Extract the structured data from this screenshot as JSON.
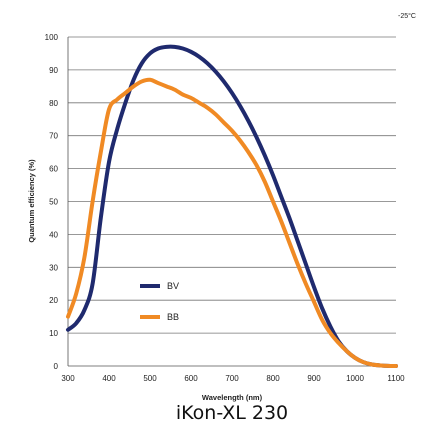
{
  "chart_data": {
    "type": "line",
    "title": "",
    "xlabel": "Wavelength (nm)",
    "ylabel": "Quantum efficiency (%)",
    "xlim": [
      300,
      1100
    ],
    "ylim": [
      0,
      100
    ],
    "xticks": [
      300,
      400,
      500,
      600,
      700,
      800,
      900,
      1000,
      1100
    ],
    "yticks": [
      0,
      10,
      20,
      30,
      40,
      50,
      60,
      70,
      80,
      90,
      100
    ],
    "grid": "horizontal",
    "legend_position": "lower-left",
    "annotation": "-25°C",
    "caption": "iKon-XL 230",
    "series": [
      {
        "name": "BV",
        "color": "#1f2a6e",
        "x": [
          300,
          320,
          340,
          360,
          380,
          400,
          420,
          440,
          460,
          480,
          500,
          520,
          540,
          560,
          580,
          600,
          620,
          640,
          660,
          680,
          700,
          720,
          740,
          760,
          780,
          800,
          820,
          840,
          860,
          880,
          900,
          920,
          940,
          960,
          980,
          1000,
          1020,
          1040,
          1060,
          1080,
          1100
        ],
        "y": [
          11,
          13,
          17,
          25,
          45,
          62,
          72,
          80,
          87,
          92,
          95,
          96.5,
          97,
          97,
          96.5,
          95.5,
          94,
          92,
          89.5,
          86.5,
          83,
          79,
          74.5,
          69.5,
          64,
          58,
          51.5,
          45,
          38,
          31,
          24,
          17.5,
          12,
          7.5,
          4.5,
          2.5,
          1.2,
          0.5,
          0.2,
          0.05,
          0
        ]
      },
      {
        "name": "BB",
        "color": "#f08a24",
        "x": [
          300,
          320,
          340,
          360,
          380,
          400,
          420,
          440,
          460,
          480,
          500,
          520,
          540,
          560,
          580,
          600,
          620,
          640,
          660,
          680,
          700,
          720,
          740,
          760,
          780,
          800,
          820,
          840,
          860,
          880,
          900,
          920,
          940,
          960,
          980,
          1000,
          1020,
          1040,
          1060,
          1080,
          1100
        ],
        "y": [
          15,
          22,
          33,
          50,
          65,
          78,
          81,
          83,
          85,
          86.5,
          87,
          86,
          85,
          84,
          82.5,
          81.5,
          80,
          78.5,
          76.5,
          74,
          71.5,
          68.5,
          65,
          61,
          56,
          50,
          44,
          37.5,
          31,
          25,
          19.5,
          14,
          10,
          7,
          4.5,
          2.5,
          1.2,
          0.5,
          0.2,
          0.05,
          0
        ]
      }
    ]
  }
}
